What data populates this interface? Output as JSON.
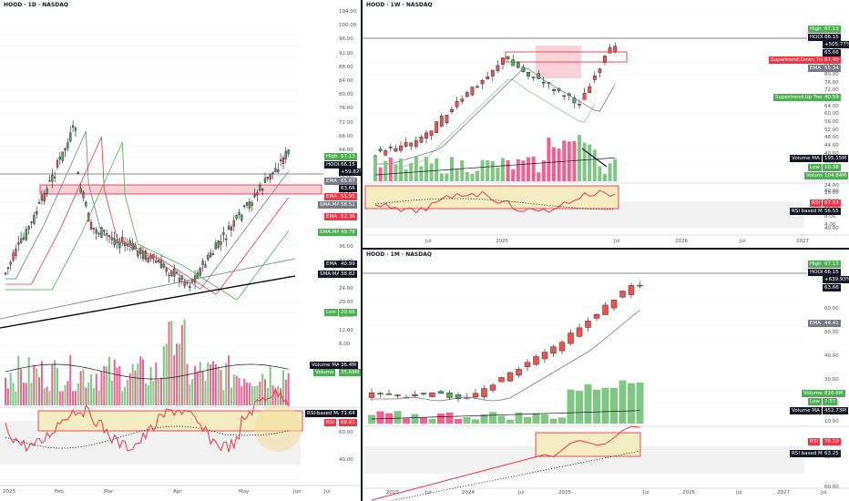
{
  "colors": {
    "up": "#4caf50",
    "down": "#ef5350",
    "vol_up": "#81c784",
    "vol_down": "#f06292",
    "rsi": "#f23645",
    "ema_dark": "#000000",
    "ema_grey": "#787b86",
    "box": "#f8d7a0",
    "zone": "#f5b5c0"
  },
  "daily": {
    "title": "HOOD · 1D · NASDAQ",
    "ticks": [
      "104.00",
      "100.00",
      "96.00",
      "92.00",
      "88.00",
      "84.00",
      "80.00",
      "76.00",
      "72.00",
      "68.00",
      "64.00",
      "60.00",
      "56.00",
      "52.00",
      "48.00",
      "44.00",
      "40.00",
      "36.00",
      "32.00",
      "28.00",
      "24.00",
      "20.00",
      "16.00",
      "12.00",
      "8.00",
      "60.00",
      "40.00"
    ],
    "xticks": [
      "2025",
      "Feb",
      "Mar",
      "Apr",
      "May",
      "Jun",
      "Jul"
    ],
    "labels": [
      {
        "text": "High",
        "bg": "#4caf50",
        "fg": "#fff"
      },
      {
        "text": "67.13",
        "bg": "#4caf50",
        "fg": "#fff"
      },
      {
        "text": "HOOD",
        "bg": "#131722",
        "fg": "#fff"
      },
      {
        "text": "66.15",
        "bg": "#131722",
        "fg": "#fff"
      },
      {
        "text": "+59.82%",
        "bg": "#131722",
        "fg": "#fff"
      },
      {
        "text": "EMA",
        "bg": "#787b86",
        "fg": "#fff"
      },
      {
        "text": "65.87",
        "bg": "#787b86",
        "fg": "#fff"
      },
      {
        "text": "63.66",
        "bg": "#131722",
        "fg": "#fff"
      },
      {
        "text": "EMA",
        "bg": "#f23645",
        "fg": "#fff"
      },
      {
        "text": "55.95",
        "bg": "#f23645",
        "fg": "#fff"
      },
      {
        "text": "SMA:MA",
        "bg": "#787b86",
        "fg": "#fff"
      },
      {
        "text": "58.51",
        "bg": "#787b86",
        "fg": "#fff"
      },
      {
        "text": "EMA",
        "bg": "#f23645",
        "fg": "#fff"
      },
      {
        "text": "52.36",
        "bg": "#f23645",
        "fg": "#fff"
      },
      {
        "text": "SMA:MA",
        "bg": "#4caf50",
        "fg": "#fff"
      },
      {
        "text": "49.78",
        "bg": "#4caf50",
        "fg": "#fff"
      },
      {
        "text": "EMA",
        "bg": "#131722",
        "fg": "#fff"
      },
      {
        "text": "40.99",
        "bg": "#131722",
        "fg": "#fff"
      },
      {
        "text": "SMA:MA",
        "bg": "#131722",
        "fg": "#fff"
      },
      {
        "text": "38.82",
        "bg": "#131722",
        "fg": "#fff"
      },
      {
        "text": "Low",
        "bg": "#4caf50",
        "fg": "#fff"
      },
      {
        "text": "29.66",
        "bg": "#4caf50",
        "fg": "#fff"
      },
      {
        "text": "Volume MA",
        "bg": "#131722",
        "fg": "#fff"
      },
      {
        "text": "36.4M",
        "bg": "#131722",
        "fg": "#fff"
      },
      {
        "text": "Volume",
        "bg": "#4caf50",
        "fg": "#fff"
      },
      {
        "text": "35.69M",
        "bg": "#4caf50",
        "fg": "#fff"
      },
      {
        "text": "RSI-based MA",
        "bg": "#131722",
        "fg": "#fff"
      },
      {
        "text": "71.64",
        "bg": "#131722",
        "fg": "#fff"
      },
      {
        "text": "RSI",
        "bg": "#f23645",
        "fg": "#fff"
      },
      {
        "text": "68.91",
        "bg": "#f23645",
        "fg": "#fff"
      }
    ]
  },
  "weekly": {
    "title": "HOOD · 1W · NASDAQ",
    "ticks": [
      "96.00",
      "92.00",
      "88.00",
      "84.00",
      "80.00",
      "76.00",
      "72.00",
      "68.00",
      "64.00",
      "60.00",
      "56.00",
      "52.00",
      "48.00",
      "44.00",
      "40.00",
      "36.00",
      "32.00",
      "28.00",
      "24.00",
      "20.00",
      "16.00",
      "12.00",
      "8.00",
      "4.00",
      "80.00",
      "60.00",
      "40.00"
    ],
    "xticks": [
      "Jul",
      "2025",
      "Jul",
      "2026",
      "Jul",
      "2027"
    ],
    "labels": [
      {
        "text": "High",
        "bg": "#4caf50",
        "fg": "#fff"
      },
      {
        "text": "67.13",
        "bg": "#4caf50",
        "fg": "#fff"
      },
      {
        "text": "HOOD",
        "bg": "#131722",
        "fg": "#fff"
      },
      {
        "text": "66.15",
        "bg": "#131722",
        "fg": "#fff"
      },
      {
        "text": "+505.77%",
        "bg": "#131722",
        "fg": "#fff"
      },
      {
        "text": "63.66",
        "bg": "#131722",
        "fg": "#fff"
      },
      {
        "text": "Supertrend:Down Trend",
        "bg": "#f23645",
        "fg": "#fff"
      },
      {
        "text": "67.40",
        "bg": "#f23645",
        "fg": "#fff"
      },
      {
        "text": "EMA",
        "bg": "#787b86",
        "fg": "#fff"
      },
      {
        "text": "55.34",
        "bg": "#787b86",
        "fg": "#fff"
      },
      {
        "text": "Supertrend:Up Trend",
        "bg": "#4caf50",
        "fg": "#fff"
      },
      {
        "text": "40.59",
        "bg": "#4caf50",
        "fg": "#fff"
      },
      {
        "text": "Volume MA",
        "bg": "#131722",
        "fg": "#fff"
      },
      {
        "text": "195.15M",
        "bg": "#131722",
        "fg": "#fff"
      },
      {
        "text": "Low",
        "bg": "#4caf50",
        "fg": "#fff"
      },
      {
        "text": "10.38",
        "bg": "#4caf50",
        "fg": "#fff"
      },
      {
        "text": "Volume",
        "bg": "#4caf50",
        "fg": "#fff"
      },
      {
        "text": "104.84M",
        "bg": "#4caf50",
        "fg": "#fff"
      },
      {
        "text": "RSI",
        "bg": "#f23645",
        "fg": "#fff"
      },
      {
        "text": "67.52",
        "bg": "#f23645",
        "fg": "#fff"
      },
      {
        "text": "RSI based MA",
        "bg": "#131722",
        "fg": "#fff"
      },
      {
        "text": "56.55",
        "bg": "#131722",
        "fg": "#fff"
      }
    ]
  },
  "monthly": {
    "title": "HOOD · 1M · NASDAQ",
    "ticks": [
      "70.00",
      "60.00",
      "50.00",
      "40.00",
      "30.00",
      "20.00",
      "10.00",
      "0.0000",
      "80.00",
      "60.00"
    ],
    "xticks": [
      "2023",
      "Jul",
      "2024",
      "Jul",
      "2025",
      "Jul",
      "2026",
      "Jul",
      "2027",
      "Jul"
    ],
    "labels": [
      {
        "text": "High",
        "bg": "#4caf50",
        "fg": "#fff"
      },
      {
        "text": "67.13",
        "bg": "#4caf50",
        "fg": "#fff"
      },
      {
        "text": "HOOD",
        "bg": "#131722",
        "fg": "#fff"
      },
      {
        "text": "66.15",
        "bg": "#131722",
        "fg": "#fff"
      },
      {
        "text": "+639.93%",
        "bg": "#131722",
        "fg": "#fff"
      },
      {
        "text": "63.66",
        "bg": "#131722",
        "fg": "#fff"
      },
      {
        "text": "EMA",
        "bg": "#787b86",
        "fg": "#fff"
      },
      {
        "text": "44.41",
        "bg": "#787b86",
        "fg": "#fff"
      },
      {
        "text": "Volume",
        "bg": "#4caf50",
        "fg": "#fff"
      },
      {
        "text": "816.6M",
        "bg": "#4caf50",
        "fg": "#fff"
      },
      {
        "text": "Low",
        "bg": "#4caf50",
        "fg": "#fff"
      },
      {
        "text": "7.57",
        "bg": "#4caf50",
        "fg": "#fff"
      },
      {
        "text": "Volume MA",
        "bg": "#131722",
        "fg": "#fff"
      },
      {
        "text": "452.73M",
        "bg": "#131722",
        "fg": "#fff"
      },
      {
        "text": "RSI",
        "bg": "#f23645",
        "fg": "#fff"
      },
      {
        "text": "76.10",
        "bg": "#f23645",
        "fg": "#fff"
      },
      {
        "text": "RSI based MA",
        "bg": "#131722",
        "fg": "#fff"
      },
      {
        "text": "63.25",
        "bg": "#131722",
        "fg": "#fff"
      }
    ]
  }
}
